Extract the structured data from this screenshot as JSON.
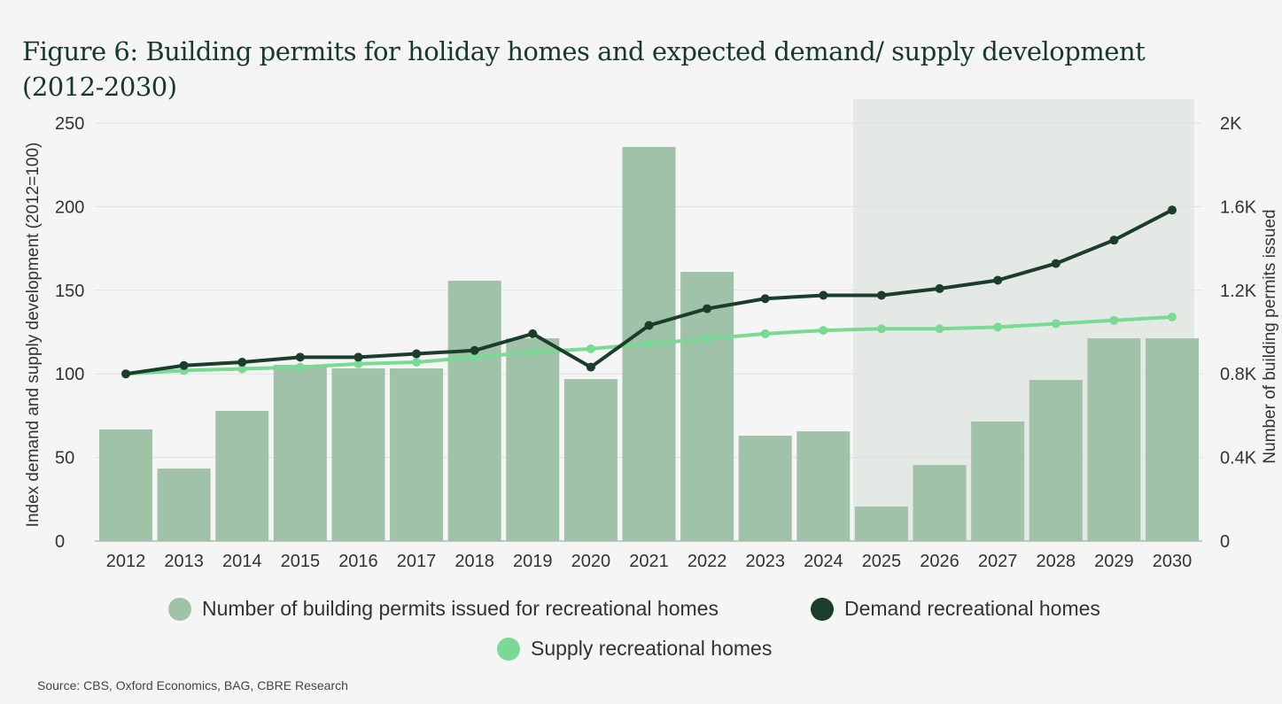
{
  "title": "Figure 6: Building permits for holiday homes and expected demand/ supply development (2012-2030)",
  "source": "Source: CBS, Oxford Economics, BAG, CBRE Research",
  "colors": {
    "bars": "#9fc2a8",
    "demand": "#1b3d2b",
    "supply": "#7ad993",
    "forecast_shade": "#e4e9e5"
  },
  "chart_data": {
    "type": "bar+line",
    "categories": [
      "2012",
      "2013",
      "2014",
      "2015",
      "2016",
      "2017",
      "2018",
      "2019",
      "2020",
      "2021",
      "2022",
      "2023",
      "2024",
      "2025",
      "2026",
      "2027",
      "2028",
      "2029",
      "2030"
    ],
    "ylabel_left": "Index demand and supply development (2012=100)",
    "ylabel_right": "Number of building permits issued",
    "ylim_left": [
      0,
      250
    ],
    "ylim_right": [
      0,
      2000
    ],
    "yticks_left": [
      "0",
      "50",
      "100",
      "150",
      "200",
      "250"
    ],
    "yticks_right": [
      "0",
      "0.4K",
      "0.8K",
      "1.2K",
      "1.6K",
      "2K"
    ],
    "grid": true,
    "forecast_shaded_from": "2025",
    "legend_position": "bottom",
    "series": [
      {
        "name": "Number of building permits issued for recreational homes",
        "type": "bar",
        "axis": "right",
        "values": [
          534,
          347,
          623,
          843,
          826,
          826,
          1246,
          970,
          775,
          1886,
          1288,
          504,
          525,
          165,
          364,
          572,
          771,
          970,
          970
        ]
      },
      {
        "name": "Demand recreational homes",
        "type": "line",
        "axis": "left",
        "values": [
          100,
          105,
          107,
          110,
          110,
          112,
          114,
          124,
          104,
          129,
          139,
          145,
          147,
          147,
          151,
          156,
          166,
          180,
          198
        ]
      },
      {
        "name": "Supply recreational homes",
        "type": "line",
        "axis": "left",
        "values": [
          100,
          102,
          103,
          104,
          106,
          107,
          110,
          113,
          115,
          118,
          121,
          124,
          126,
          127,
          127,
          128,
          130,
          132,
          134
        ]
      }
    ]
  }
}
